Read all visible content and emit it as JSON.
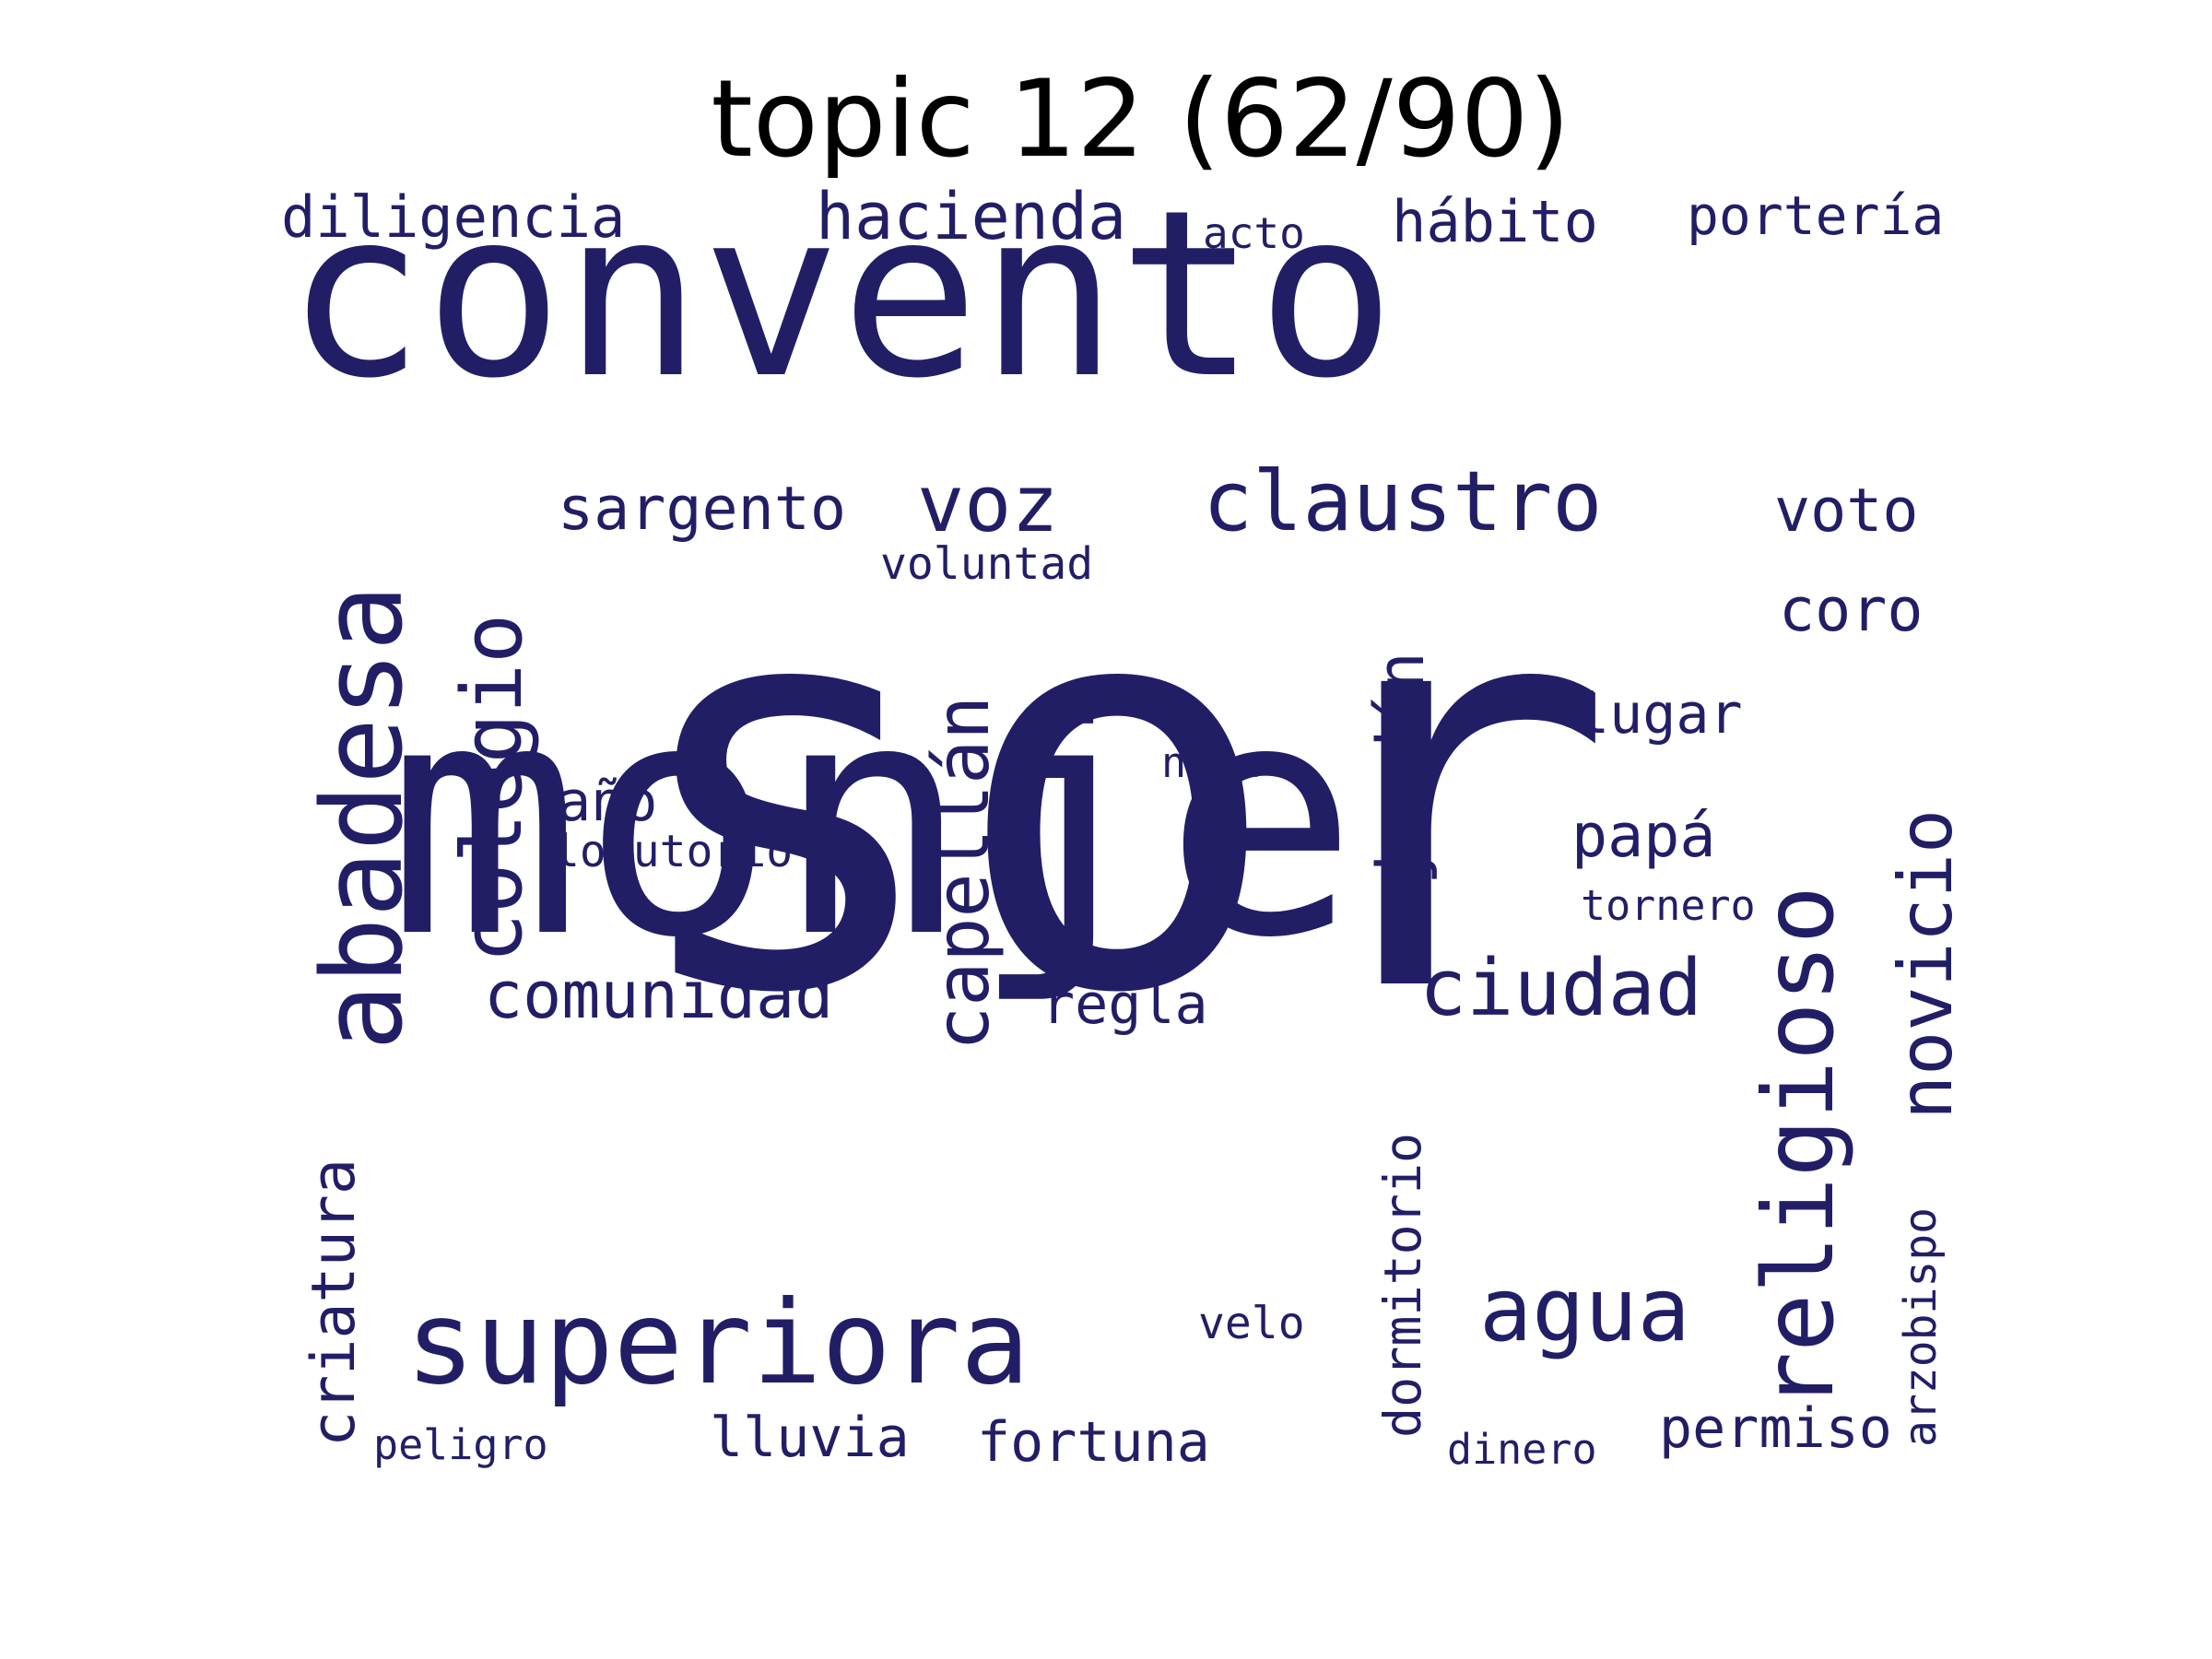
{
  "title": "topic 12 (62/90)",
  "color": "#221E66",
  "words": [
    {
      "text": "sor"
    },
    {
      "text": "convento"
    },
    {
      "text": "monje"
    },
    {
      "text": "superiora"
    },
    {
      "text": "abadesa"
    },
    {
      "text": "religioso"
    },
    {
      "text": "colegio"
    },
    {
      "text": "claustro"
    },
    {
      "text": "capellán"
    },
    {
      "text": "novicio"
    },
    {
      "text": "agua"
    },
    {
      "text": "ciudad"
    },
    {
      "text": "jardín"
    },
    {
      "text": "comunidad"
    },
    {
      "text": "hacienda"
    },
    {
      "text": "voz"
    },
    {
      "text": "criatura"
    },
    {
      "text": "hábito"
    },
    {
      "text": "diligencia"
    },
    {
      "text": "sargento"
    },
    {
      "text": "voto"
    },
    {
      "text": "coro"
    },
    {
      "text": "portería"
    },
    {
      "text": "dormitorio"
    },
    {
      "text": "regla"
    },
    {
      "text": "lluvia"
    },
    {
      "text": "fortuna"
    },
    {
      "text": "permiso"
    },
    {
      "text": "papá"
    },
    {
      "text": "lugar"
    },
    {
      "text": "año"
    },
    {
      "text": "arzobispo"
    },
    {
      "text": "locutorio"
    },
    {
      "text": "velo"
    },
    {
      "text": "peligro"
    },
    {
      "text": "voluntad"
    },
    {
      "text": "dinero"
    },
    {
      "text": "tornero"
    },
    {
      "text": "acto"
    },
    {
      "text": "nana"
    }
  ]
}
